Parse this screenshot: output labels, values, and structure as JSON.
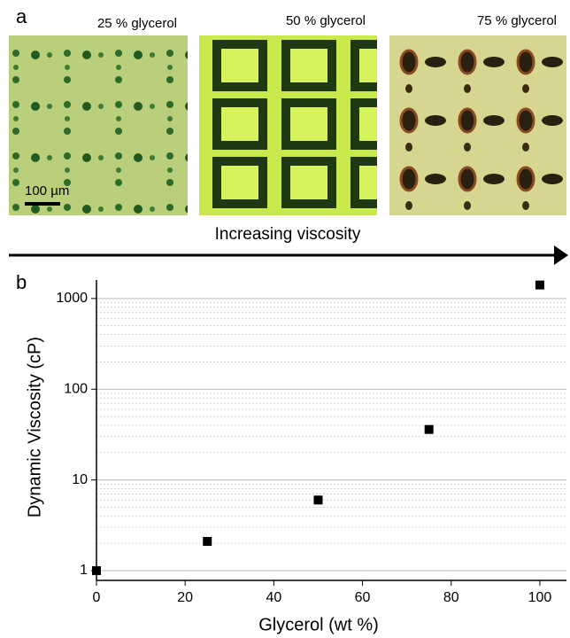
{
  "panel_a": {
    "label": "a",
    "images": [
      {
        "caption": "25 % glycerol"
      },
      {
        "caption": "50 % glycerol"
      },
      {
        "caption": "75 % glycerol"
      }
    ],
    "scale_bar": "100 µm",
    "arrow_label": "Increasing viscosity"
  },
  "chart_data": {
    "type": "scatter",
    "panel_label": "b",
    "x_label": "Glycerol (wt %)",
    "y_label": "Dynamic Viscosity (cP)",
    "x": [
      0,
      25,
      50,
      75,
      100
    ],
    "values": [
      1.0,
      2.1,
      6.0,
      36,
      1410
    ],
    "color": "#000000",
    "xlim": [
      0,
      106
    ],
    "xticks": [
      0,
      20,
      40,
      60,
      80,
      100
    ],
    "ylim": [
      0.78,
      1600
    ],
    "yticks": [
      1,
      10,
      100,
      1000
    ],
    "y_scale": "log",
    "grid": true,
    "minor_grid": true
  }
}
